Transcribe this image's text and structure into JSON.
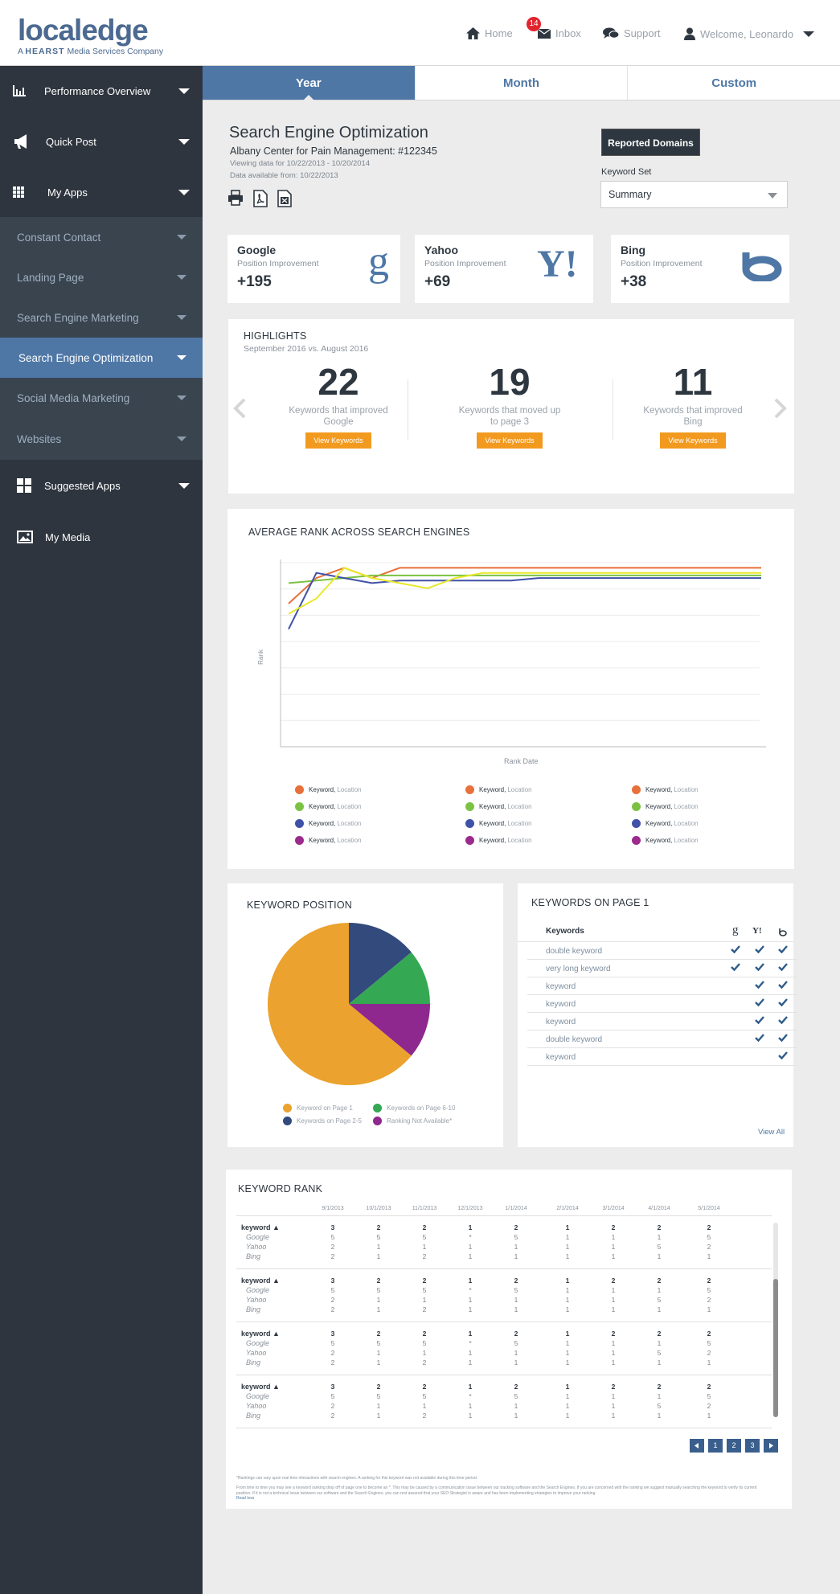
{
  "header": {
    "logo_word": "localedge",
    "logo_tag_prefix": "A",
    "logo_tag_brand": "HEARST",
    "logo_tag_suffix": "Media Services Company",
    "nav": {
      "home": "Home",
      "inbox": "Inbox",
      "inbox_count": "14",
      "support": "Support",
      "welcome": "Welcome, Leonardo"
    }
  },
  "sidebar": {
    "items": [
      {
        "label": "Performance Overview",
        "icon": "bar-chart-icon"
      },
      {
        "label": "Quick Post",
        "icon": "megaphone-icon"
      },
      {
        "label": "My Apps",
        "icon": "grid-icon"
      }
    ],
    "sub_items": [
      "Constant Contact",
      "Landing Page",
      "Search Engine Marketing",
      "Search Engine Optimization",
      "Social Media Marketing",
      "Websites"
    ],
    "active_sub": "Search Engine Optimization",
    "bottom_items": [
      {
        "label": "Suggested Apps",
        "icon": "apps-icon"
      },
      {
        "label": "My Media",
        "icon": "image-icon"
      }
    ]
  },
  "tabs": [
    "Year",
    "Month",
    "Custom"
  ],
  "active_tab": "Year",
  "page": {
    "title": "Search Engine Optimization",
    "client": "Albany Center for Pain Management: #122345",
    "viewing": "Viewing data for 10/22/2013 - 10/20/2014",
    "available": "Data available from: 10/22/2013",
    "reported_button": "Reported Domains",
    "keyword_set_label": "Keyword Set",
    "keyword_set_value": "Summary"
  },
  "engines": [
    {
      "name": "Google",
      "sub": "Position Improvement",
      "value": "+195",
      "logo": "g"
    },
    {
      "name": "Yahoo",
      "sub": "Position Improvement",
      "value": "+69",
      "logo": "Y!"
    },
    {
      "name": "Bing",
      "sub": "Position Improvement",
      "value": "+38",
      "logo": "b"
    }
  ],
  "highlights": {
    "title": "HIGHLIGHTS",
    "subtitle": "September 2016 vs. August 2016",
    "items": [
      {
        "num": "22",
        "text1": "Keywords that improved",
        "text2": "Google",
        "btn": "View Keywords"
      },
      {
        "num": "19",
        "text1": "Keywords that moved up",
        "text2": "to page 3",
        "btn": "View Keywords"
      },
      {
        "num": "11",
        "text1": "Keywords that improved",
        "text2": "Bing",
        "btn": "View Keywords"
      }
    ]
  },
  "avg_rank": {
    "title": "AVERAGE RANK ACROSS SEARCH ENGINES",
    "ylabel": "Rank",
    "xlabel": "Rank Date",
    "legend_keyword": "Keyword",
    "legend_location": "Location",
    "colors": [
      "#e8703a",
      "#7cc242",
      "#3f51a8",
      "#9c2a8c"
    ]
  },
  "keyword_position": {
    "title": "KEYWORD POSITION",
    "legend": [
      "Keyword on Page 1",
      "Keywords on Page 6-10",
      "Keywords on Page 2-5",
      "Ranking Not Available*"
    ]
  },
  "page1": {
    "title": "KEYWORDS ON PAGE 1",
    "header": "Keywords",
    "rows": [
      {
        "kw": "double keyword",
        "g": true,
        "y": true,
        "b": true
      },
      {
        "kw": "very long keyword",
        "g": true,
        "y": true,
        "b": true
      },
      {
        "kw": "keyword",
        "g": false,
        "y": true,
        "b": true
      },
      {
        "kw": "keyword",
        "g": false,
        "y": true,
        "b": true
      },
      {
        "kw": "keyword",
        "g": false,
        "y": true,
        "b": true
      },
      {
        "kw": "double keyword",
        "g": false,
        "y": true,
        "b": true
      },
      {
        "kw": "keyword",
        "g": false,
        "y": false,
        "b": true
      }
    ],
    "view_all": "View All"
  },
  "rank": {
    "title": "KEYWORD RANK",
    "dates": [
      "9/1/2013",
      "10/1/2013",
      "11/1/2013",
      "12/1/2013",
      "1/1/2014",
      "2/1/2014",
      "3/1/2014",
      "4/1/2014",
      "5/1/2014"
    ],
    "groups": [
      {
        "kw": "keyword",
        "total": [
          "3",
          "2",
          "2",
          "1",
          "2",
          "1",
          "2",
          "2",
          "2"
        ],
        "google": [
          "5",
          "5",
          "5",
          "*",
          "5",
          "1",
          "1",
          "1",
          "5"
        ],
        "yahoo": [
          "2",
          "1",
          "1",
          "1",
          "1",
          "1",
          "1",
          "5",
          "2"
        ],
        "bing": [
          "2",
          "1",
          "2",
          "1",
          "1",
          "1",
          "1",
          "1",
          "1"
        ]
      },
      {
        "kw": "keyword",
        "total": [
          "3",
          "2",
          "2",
          "1",
          "2",
          "1",
          "2",
          "2",
          "2"
        ],
        "google": [
          "5",
          "5",
          "5",
          "*",
          "5",
          "1",
          "1",
          "1",
          "5"
        ],
        "yahoo": [
          "2",
          "1",
          "1",
          "1",
          "1",
          "1",
          "1",
          "5",
          "2"
        ],
        "bing": [
          "2",
          "1",
          "2",
          "1",
          "1",
          "1",
          "1",
          "1",
          "1"
        ]
      },
      {
        "kw": "keyword",
        "total": [
          "3",
          "2",
          "2",
          "1",
          "2",
          "1",
          "2",
          "2",
          "2"
        ],
        "google": [
          "5",
          "5",
          "5",
          "*",
          "5",
          "1",
          "1",
          "1",
          "5"
        ],
        "yahoo": [
          "2",
          "1",
          "1",
          "1",
          "1",
          "1",
          "1",
          "5",
          "2"
        ],
        "bing": [
          "2",
          "1",
          "2",
          "1",
          "1",
          "1",
          "1",
          "1",
          "1"
        ]
      },
      {
        "kw": "keyword",
        "total": [
          "3",
          "2",
          "2",
          "1",
          "2",
          "1",
          "2",
          "2",
          "2"
        ],
        "google": [
          "5",
          "5",
          "5",
          "*",
          "5",
          "1",
          "1",
          "1",
          "5"
        ],
        "yahoo": [
          "2",
          "1",
          "1",
          "1",
          "1",
          "1",
          "1",
          "5",
          "2"
        ],
        "bing": [
          "2",
          "1",
          "2",
          "1",
          "1",
          "1",
          "1",
          "1",
          "1"
        ]
      }
    ],
    "engine_labels": [
      "Google",
      "Yahoo",
      "Bing"
    ],
    "pages": [
      "1",
      "2",
      "3"
    ],
    "footnote1": "*Rankings can vary upon real time interactions with search engines. A ranking for this keyword was not available during this time period.",
    "footnote2": "From time to time you may see a keyword ranking drop off of page one to become an *. This may be caused by a communication issue between our tracking software and the Search Engines. If you are concerned with the ranking we suggest manually searching the keyword to verify its current position. If it is not a technical issue between our software and the Search Engines, you can rest assured that your SEO Strategist is aware and has been implementing strategies to improve your ranking.",
    "read_less": "Read less"
  },
  "chart_data": [
    {
      "type": "line",
      "title": "AVERAGE RANK ACROSS SEARCH ENGINES",
      "xlabel": "Rank Date",
      "ylabel": "Rank",
      "x": [
        0,
        1,
        2,
        3,
        4,
        5,
        6,
        7,
        8,
        9,
        10,
        11,
        12,
        13,
        14,
        15,
        16,
        17
      ],
      "series": [
        {
          "color": "#e8703a",
          "values": [
            8,
            3,
            1,
            3,
            1,
            1,
            1,
            1,
            1,
            1,
            1,
            1,
            1,
            1,
            1,
            1,
            1,
            1
          ]
        },
        {
          "color": "#7cc242",
          "values": [
            4,
            3.5,
            3,
            2.5,
            2.5,
            2.5,
            2.5,
            2.5,
            2.5,
            2.5,
            2.5,
            2.5,
            2.5,
            2.5,
            2.5,
            2.5,
            2.5,
            2.5
          ]
        },
        {
          "color": "#3f51a8",
          "values": [
            13,
            2,
            3,
            4,
            3.5,
            3.5,
            3.5,
            3.5,
            3.5,
            3,
            3,
            3,
            3,
            3,
            3,
            3,
            3,
            3
          ]
        },
        {
          "color": "#e8e82a",
          "values": [
            10,
            7,
            1,
            3,
            4,
            5,
            3,
            2,
            2,
            2,
            2,
            2,
            2,
            2,
            2,
            2,
            2,
            2
          ]
        }
      ],
      "ylim": [
        0,
        36
      ]
    },
    {
      "type": "pie",
      "title": "KEYWORD POSITION",
      "categories": [
        "Keyword on Page 1",
        "Keywords on Page 2-5",
        "Keywords on Page 6-10",
        "Ranking Not Available*"
      ],
      "values": [
        64,
        14,
        11,
        11
      ],
      "colors": [
        "#eba22e",
        "#324a7c",
        "#34a853",
        "#8e278e"
      ]
    }
  ]
}
